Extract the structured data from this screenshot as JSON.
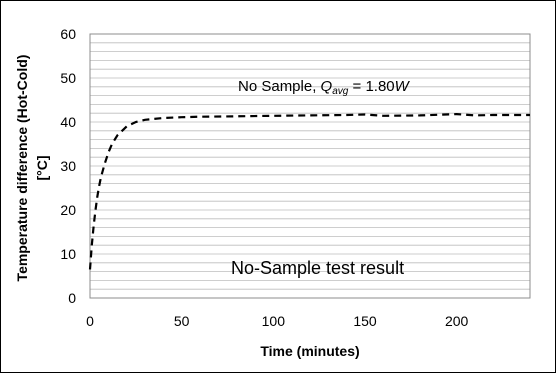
{
  "chart_data": {
    "type": "line",
    "title": "",
    "xlabel": "Time (minutes)",
    "ylabel_line1": "Temperature difference (Hot-Cold)",
    "ylabel_line2": "[°C]",
    "xlim": [
      0,
      240
    ],
    "ylim": [
      0,
      60
    ],
    "x_ticks": [
      0,
      50,
      100,
      150,
      200
    ],
    "y_ticks": [
      0,
      10,
      20,
      30,
      40,
      50,
      60
    ],
    "y_minor_step": 2,
    "grid": true,
    "line_style": "dashed",
    "line_color": "#000000",
    "series": [
      {
        "x": [
          0,
          1,
          2,
          3,
          4,
          5,
          6,
          8,
          10,
          12,
          15,
          20,
          25,
          30,
          40,
          50,
          60,
          80,
          100,
          120,
          140,
          150,
          160,
          180,
          200,
          210,
          220,
          240
        ],
        "values": [
          6.5,
          12,
          16.5,
          20,
          23,
          25.5,
          27.5,
          30.5,
          33,
          35,
          37,
          39,
          40,
          40.5,
          40.9,
          41.1,
          41.2,
          41.3,
          41.4,
          41.5,
          41.6,
          41.7,
          41.4,
          41.5,
          41.8,
          41.5,
          41.6,
          41.6
        ]
      }
    ],
    "annotations": {
      "legend_prefix": "No Sample, ",
      "legend_q": "Q",
      "legend_q_sub": "avg",
      "legend_eq": " = 1.80",
      "legend_unit": "W",
      "caption": "No-Sample test result"
    }
  }
}
